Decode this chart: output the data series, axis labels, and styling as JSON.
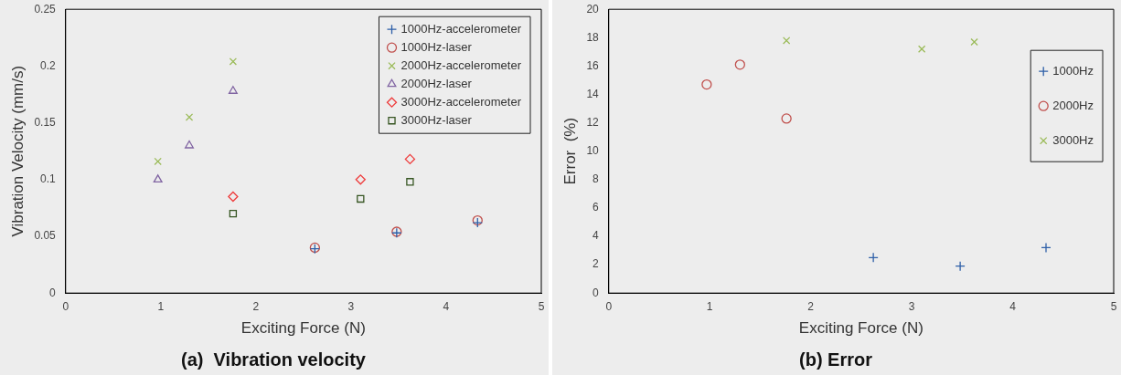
{
  "chart_data": [
    {
      "type": "scatter",
      "title": "(a)  Vibration velocity",
      "xlabel": "Exciting Force (N)",
      "ylabel": "Vibration Velocity (mm/s)",
      "xlim": [
        0,
        5
      ],
      "xticks": [
        0,
        1,
        2,
        3,
        4,
        5
      ],
      "ylim": [
        0,
        0.25
      ],
      "yticks": [
        0,
        0.05,
        0.1,
        0.15,
        0.2,
        0.25
      ],
      "grid": false,
      "legend": "top right",
      "series": [
        {
          "name": "1000Hz-accelerometer",
          "color": "#2e5fa8",
          "marker": "plus",
          "x": [
            2.62,
            3.48,
            4.33
          ],
          "values": [
            0.039,
            0.053,
            0.062
          ]
        },
        {
          "name": "1000Hz-laser",
          "color": "#c0504d",
          "marker": "circle",
          "x": [
            2.62,
            3.48,
            4.33
          ],
          "values": [
            0.04,
            0.054,
            0.064
          ]
        },
        {
          "name": "2000Hz-accelerometer",
          "color": "#9bbb59",
          "marker": "cross",
          "x": [
            0.97,
            1.3,
            1.76
          ],
          "values": [
            0.116,
            0.155,
            0.204
          ]
        },
        {
          "name": "2000Hz-laser",
          "color": "#8064a2",
          "marker": "triangle",
          "x": [
            0.97,
            1.3,
            1.76
          ],
          "values": [
            0.1,
            0.13,
            0.178
          ]
        },
        {
          "name": "3000Hz-accelerometer",
          "color": "#ee3b3b",
          "marker": "diamond",
          "x": [
            1.76,
            3.1,
            3.62
          ],
          "values": [
            0.085,
            0.1,
            0.118
          ]
        },
        {
          "name": "3000Hz-laser",
          "color": "#375623",
          "marker": "square",
          "x": [
            1.76,
            3.1,
            3.62
          ],
          "values": [
            0.07,
            0.083,
            0.098
          ]
        }
      ]
    },
    {
      "type": "scatter",
      "title": "(b) Error",
      "xlabel": "Exciting Force (N)",
      "ylabel": "Error  (%)",
      "xlim": [
        0,
        5
      ],
      "xticks": [
        0,
        1,
        2,
        3,
        4,
        5
      ],
      "ylim": [
        0,
        20
      ],
      "yticks": [
        0,
        2,
        4,
        6,
        8,
        10,
        12,
        14,
        16,
        18,
        20
      ],
      "grid": false,
      "legend": "right",
      "series": [
        {
          "name": "1000Hz",
          "color": "#2e5fa8",
          "marker": "plus",
          "x": [
            2.62,
            3.48,
            4.33
          ],
          "values": [
            2.5,
            1.9,
            3.2
          ]
        },
        {
          "name": "2000Hz",
          "color": "#c0504d",
          "marker": "circle",
          "x": [
            0.97,
            1.3,
            1.76
          ],
          "values": [
            14.7,
            16.1,
            12.3
          ]
        },
        {
          "name": "3000Hz",
          "color": "#9bbb59",
          "marker": "cross",
          "x": [
            1.76,
            3.1,
            3.62
          ],
          "values": [
            17.8,
            17.2,
            17.7
          ]
        }
      ]
    }
  ]
}
